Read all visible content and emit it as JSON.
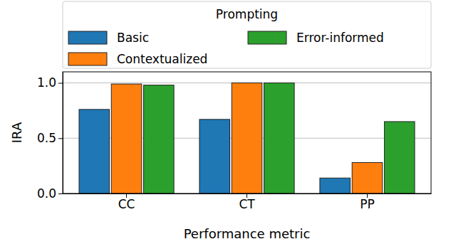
{
  "chart_data": {
    "type": "bar",
    "categories": [
      "CC",
      "CT",
      "PP"
    ],
    "series": [
      {
        "name": "Basic",
        "color": "#1f77b4",
        "values": [
          0.76,
          0.67,
          0.14
        ]
      },
      {
        "name": "Contextualized",
        "color": "#ff7f0e",
        "values": [
          0.99,
          1.0,
          0.28
        ]
      },
      {
        "name": "Error-informed",
        "color": "#2ca02c",
        "values": [
          0.98,
          1.0,
          0.65
        ]
      }
    ],
    "x_label": "Performance metric",
    "y_label": "IRA",
    "legend_title": "Prompting",
    "legend": "top",
    "ylim": [
      0,
      1.1
    ],
    "yticks": [
      {
        "value": 0,
        "label": "0.0"
      },
      {
        "value": 0.5,
        "label": "0.5"
      },
      {
        "value": 1.0,
        "label": "1.0"
      }
    ],
    "grid": true
  }
}
